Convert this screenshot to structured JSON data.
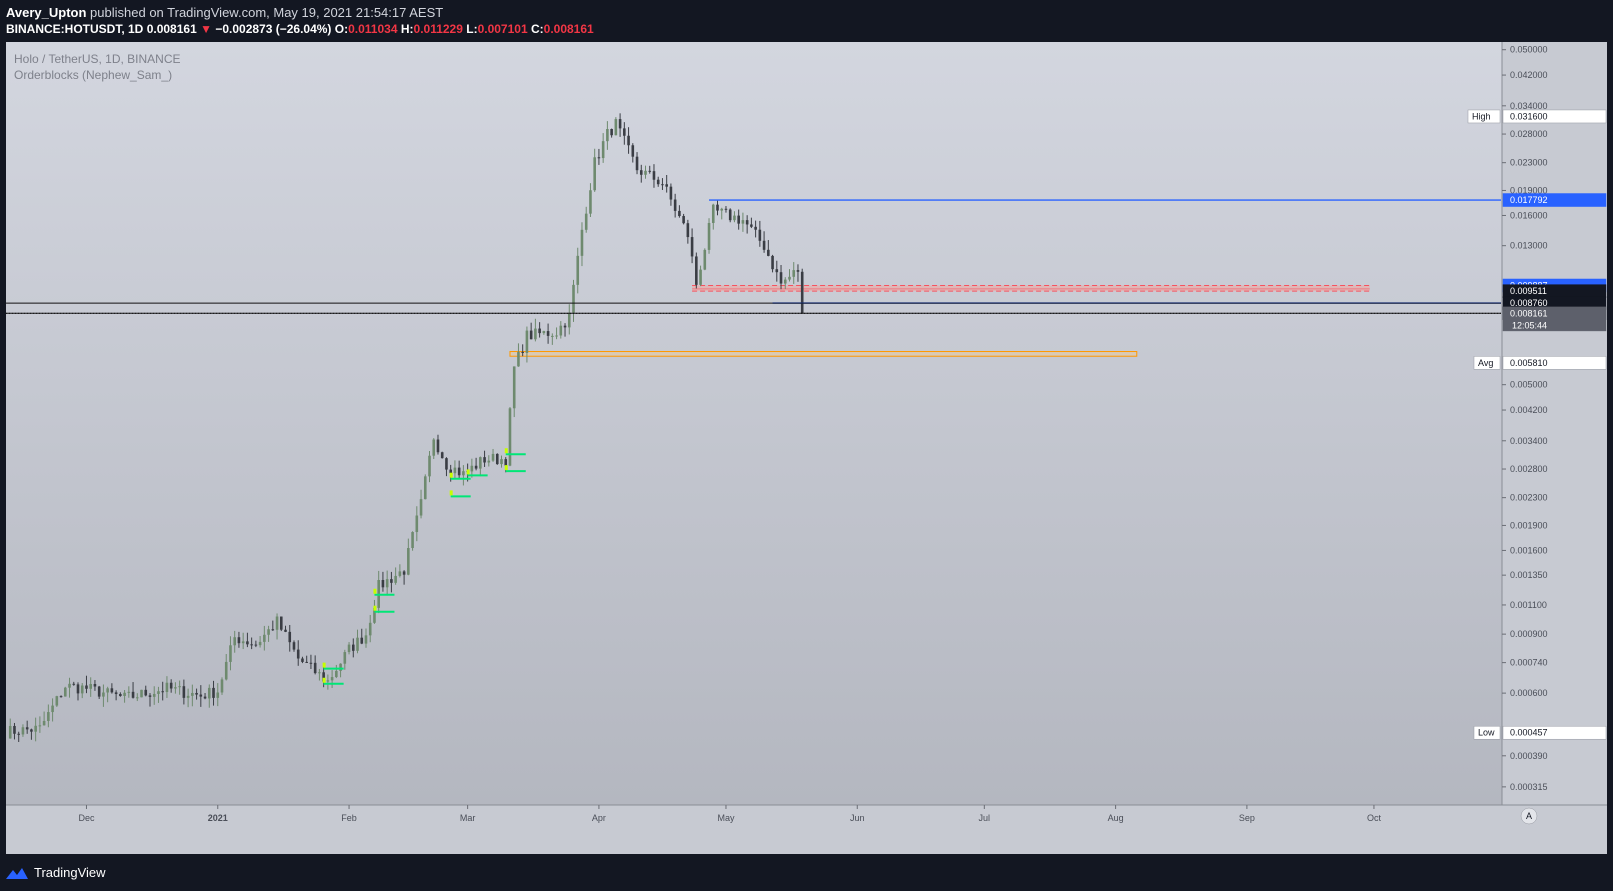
{
  "header": {
    "author": "Avery_Upton",
    "published_text": " published on TradingView.com, May 19, 2021 21:54:17 AEST",
    "symbol_line": "BINANCE:HOTUSDT, 1D",
    "last_price": "0.008161",
    "change": "−0.002873 (−26.04%)",
    "o_label": "O:",
    "o_value": "0.011034",
    "h_label": "H:",
    "h_value": "0.011229",
    "l_label": "L:",
    "l_value": "0.007101",
    "c_label": "C:",
    "c_value": "0.008161"
  },
  "legend": {
    "symbol": "Holo / TetherUS, 1D, BINANCE",
    "indicator": "Orderblocks (Nephew_Sam_)"
  },
  "footer": {
    "brand": "TradingView"
  },
  "colors": {
    "up": "#6e8a6e",
    "down": "#3a3d44",
    "accent_blue": "#2962ff",
    "orderblock_red": "#f4a49c",
    "orderblock_border": "#f7525f",
    "support_orange": "#ff9800",
    "bullish_marker": "#00e676",
    "highlight_lime": "#c6ff00"
  },
  "chart_data": {
    "type": "candlestick",
    "title": "Holo / TetherUS, 1D, BINANCE",
    "y_scale": "log",
    "y_ticks": [
      "0.050000",
      "0.042000",
      "0.034000",
      "0.028000",
      "0.023000",
      "0.019000",
      "0.016000",
      "0.013000",
      "0.005000",
      "0.004200",
      "0.003400",
      "0.002800",
      "0.002300",
      "0.001900",
      "0.001600",
      "0.001350",
      "0.001100",
      "0.000900",
      "0.000740",
      "0.000600",
      "0.000390",
      "0.000315"
    ],
    "x_ticks": [
      "Dec",
      "2021",
      "Feb",
      "Mar",
      "Apr",
      "May",
      "Jun",
      "Jul",
      "Aug",
      "Sep",
      "Oct"
    ],
    "x_ticks_dates": [
      "2020-12-01",
      "2021-01-01",
      "2021-02-01",
      "2021-03-01",
      "2021-04-01",
      "2021-05-01",
      "2021-06-01",
      "2021-07-01",
      "2021-08-01",
      "2021-09-01",
      "2021-10-01"
    ],
    "x_range": [
      "2020-11-12",
      "2021-10-31"
    ],
    "y_range": [
      0.00028,
      0.052
    ],
    "tags": [
      {
        "label": "High",
        "value": "0.031600",
        "kind": "white"
      },
      {
        "label": "",
        "value": "0.017792",
        "kind": "blue"
      },
      {
        "label": "",
        "value": "0.009887",
        "kind": "blue"
      },
      {
        "label": "",
        "value": "0.009511",
        "kind": "black"
      },
      {
        "label": "",
        "value": "0.008760",
        "kind": "black"
      },
      {
        "label": "",
        "value": "0.008171",
        "kind": "black"
      },
      {
        "label": "",
        "value": "0.008161",
        "kind": "gray",
        "sub": "12:05:44"
      },
      {
        "label": "Avg",
        "value": "0.005810",
        "kind": "white"
      },
      {
        "label": "Low",
        "value": "0.000457",
        "kind": "white"
      }
    ],
    "zones": [
      {
        "type": "bearish_orderblock",
        "from": "2021-04-23",
        "to": "2021-09-30",
        "top": 0.009887,
        "bottom": 0.009511,
        "mid": 0.00966
      },
      {
        "type": "support",
        "from": "2021-03-11",
        "to": "2021-08-06",
        "top": 0.00628,
        "bottom": 0.00608
      }
    ],
    "lines": [
      {
        "from": "2021-04-27",
        "to": "2021-10-31",
        "value": 0.017792,
        "color": "blue"
      },
      {
        "from": "2021-05-12",
        "to": "2021-10-31",
        "value": 0.00876,
        "color": "blue"
      },
      {
        "from": "2020-11-12",
        "to": "2021-10-31",
        "value": 0.00876,
        "color": "black"
      },
      {
        "from": "2020-11-12",
        "to": "2021-10-31",
        "value": 0.008171,
        "color": "black"
      },
      {
        "from": "2020-11-12",
        "to": "2021-10-31",
        "value": 0.008161,
        "color": "dotted"
      }
    ],
    "markers": [
      {
        "date": "2021-01-26",
        "value": 0.00071
      },
      {
        "date": "2021-01-26",
        "value": 0.00064
      },
      {
        "date": "2021-02-07",
        "value": 0.00118
      },
      {
        "date": "2021-02-07",
        "value": 0.00105
      },
      {
        "date": "2021-02-25",
        "value": 0.00262
      },
      {
        "date": "2021-02-25",
        "value": 0.00232
      },
      {
        "date": "2021-03-01",
        "value": 0.00268
      },
      {
        "date": "2021-03-10",
        "value": 0.0031
      },
      {
        "date": "2021-03-10",
        "value": 0.00276
      }
    ],
    "anchors": [
      [
        "2020-11-12",
        0.00046
      ],
      [
        "2020-11-20",
        0.00047
      ],
      [
        "2020-11-26",
        0.00063
      ],
      [
        "2020-12-01",
        0.00062
      ],
      [
        "2020-12-10",
        0.00058
      ],
      [
        "2020-12-20",
        0.00062
      ],
      [
        "2020-12-28",
        0.00059
      ],
      [
        "2021-01-01",
        0.00061
      ],
      [
        "2021-01-05",
        0.00088
      ],
      [
        "2021-01-10",
        0.00084
      ],
      [
        "2021-01-15",
        0.00098
      ],
      [
        "2021-01-20",
        0.00076
      ],
      [
        "2021-01-27",
        0.00065
      ],
      [
        "2021-02-01",
        0.00081
      ],
      [
        "2021-02-05",
        0.0009
      ],
      [
        "2021-02-08",
        0.00125
      ],
      [
        "2021-02-14",
        0.0014
      ],
      [
        "2021-02-18",
        0.0022
      ],
      [
        "2021-02-21",
        0.0035
      ],
      [
        "2021-02-24",
        0.0029
      ],
      [
        "2021-02-28",
        0.0027
      ],
      [
        "2021-03-05",
        0.003
      ],
      [
        "2021-03-10",
        0.003
      ],
      [
        "2021-03-12",
        0.0056
      ],
      [
        "2021-03-15",
        0.007
      ],
      [
        "2021-03-22",
        0.0072
      ],
      [
        "2021-03-25",
        0.008
      ],
      [
        "2021-03-28",
        0.0145
      ],
      [
        "2021-03-31",
        0.023
      ],
      [
        "2021-04-03",
        0.028
      ],
      [
        "2021-04-05",
        0.03
      ],
      [
        "2021-04-10",
        0.022
      ],
      [
        "2021-04-16",
        0.02
      ],
      [
        "2021-04-22",
        0.014
      ],
      [
        "2021-04-24",
        0.01
      ],
      [
        "2021-04-28",
        0.0165
      ],
      [
        "2021-05-05",
        0.0155
      ],
      [
        "2021-05-10",
        0.013
      ],
      [
        "2021-05-14",
        0.01
      ],
      [
        "2021-05-18",
        0.011
      ],
      [
        "2021-05-19",
        0.00816
      ]
    ]
  }
}
